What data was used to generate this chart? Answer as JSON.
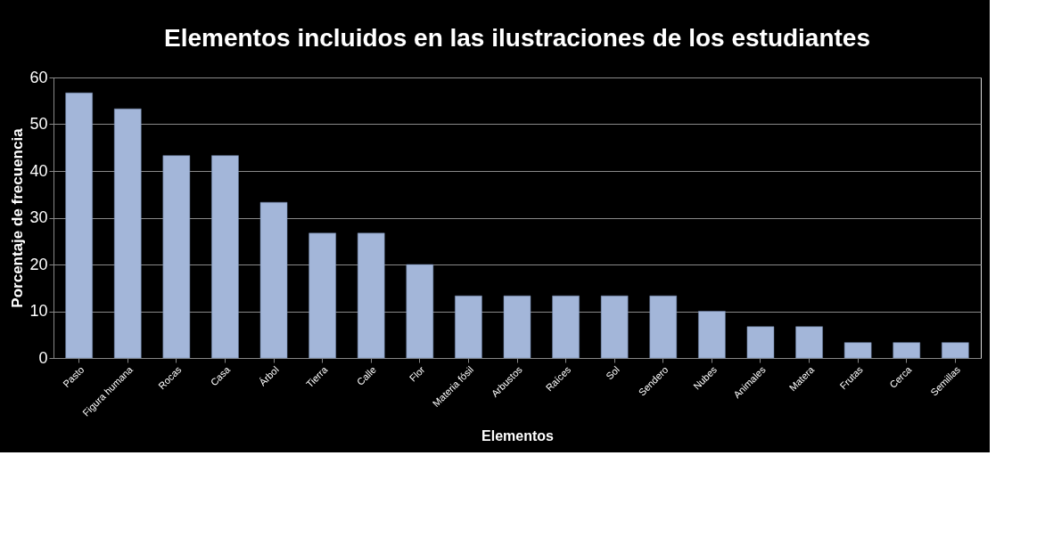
{
  "chart_data": {
    "type": "bar",
    "title": "Elementos incluidos en las ilustraciones de los estudiantes",
    "xlabel": "Elementos",
    "ylabel": "Porcentaje de frecuencia",
    "categories": [
      "Pasto",
      "Figura humana",
      "Rocas",
      "Casa",
      "Árbol",
      "Tierra",
      "Calle",
      "Flor",
      "Materia fósil",
      "Arbustos",
      "Raíces",
      "Sol",
      "Sendero",
      "Nubes",
      "Animales",
      "Matera",
      "Frutas",
      "Cerca",
      "Semillas"
    ],
    "values": [
      56.7,
      53.3,
      43.3,
      43.3,
      33.3,
      26.7,
      26.7,
      20,
      13.3,
      13.3,
      13.3,
      13.3,
      13.3,
      10,
      6.7,
      6.7,
      3.3,
      3.3,
      3.3
    ],
    "color": "#a3b6d9",
    "ylim": [
      0,
      60
    ],
    "yticks": [
      0,
      10,
      20,
      30,
      40,
      50,
      60
    ],
    "grid": "y"
  }
}
